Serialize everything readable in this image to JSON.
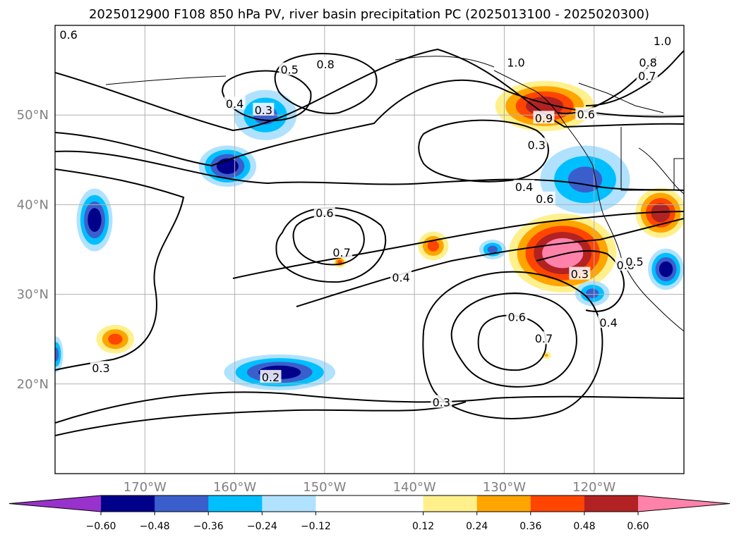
{
  "chart_data": {
    "type": "contour",
    "title": "2025012900 F108 850 hPa PV, river basin precipitation PC (2025013100 - 2025020300)",
    "map": {
      "lon_range": [
        -180,
        -110
      ],
      "lat_range": [
        10,
        60
      ],
      "lon_ticks": [
        -170,
        -160,
        -150,
        -140,
        -130,
        -120
      ],
      "lon_tick_labels": [
        "170°W",
        "160°W",
        "150°W",
        "140°W",
        "130°W",
        "120°W"
      ],
      "lat_ticks": [
        20,
        30,
        40,
        50
      ],
      "lat_tick_labels": [
        "20°N",
        "30°N",
        "40°N",
        "50°N"
      ],
      "grid": true,
      "tick_label_color": "#808080"
    },
    "colorbar": {
      "orientation": "horizontal",
      "extend": "both",
      "boundaries": [
        -0.72,
        -0.6,
        -0.48,
        -0.36,
        -0.24,
        -0.12,
        0.12,
        0.24,
        0.36,
        0.48,
        0.6,
        0.72
      ],
      "colors": [
        "#9932cc",
        "#00008b",
        "#3a5fcd",
        "#00bfff",
        "#b0e2ff",
        "#ffffff",
        "#fff08c",
        "#ffa500",
        "#ff4500",
        "#b22222",
        "#ff82ab"
      ],
      "tick_values": [
        -0.6,
        -0.48,
        -0.36,
        -0.24,
        -0.12,
        0.12,
        0.24,
        0.36,
        0.48,
        0.6
      ],
      "tick_labels": [
        "−0.60",
        "−0.48",
        "−0.36",
        "−0.24",
        "−0.12",
        "0.12",
        "0.24",
        "0.36",
        "0.48",
        "0.60"
      ]
    },
    "shaded_regions": [
      {
        "lon": -156.6,
        "lat": 50.0,
        "rx": 3.5,
        "ry": 2.8,
        "value": -0.36
      },
      {
        "lon": -160.8,
        "lat": 44.3,
        "rx": 3.2,
        "ry": 2.3,
        "value": -0.48
      },
      {
        "lon": -175.6,
        "lat": 38.3,
        "rx": 2.0,
        "ry": 3.5,
        "value": -0.48
      },
      {
        "lon": -173.3,
        "lat": 25.0,
        "rx": 2.1,
        "ry": 1.6,
        "value": 0.36
      },
      {
        "lon": -179.9,
        "lat": 23.3,
        "rx": 0.8,
        "ry": 2.0,
        "value": -0.36
      },
      {
        "lon": -155.0,
        "lat": 21.3,
        "rx": 6.2,
        "ry": 2.0,
        "value": -0.48
      },
      {
        "lon": -148.3,
        "lat": 33.6,
        "rx": 0.7,
        "ry": 0.6,
        "value": 0.36
      },
      {
        "lon": -137.9,
        "lat": 35.4,
        "rx": 1.7,
        "ry": 1.6,
        "value": 0.36
      },
      {
        "lon": -131.3,
        "lat": 35.0,
        "rx": 1.5,
        "ry": 1.1,
        "value": -0.36
      },
      {
        "lon": -125.5,
        "lat": 51.0,
        "rx": 5.5,
        "ry": 2.8,
        "value": 0.48
      },
      {
        "lon": -121.0,
        "lat": 42.8,
        "rx": 5.0,
        "ry": 3.8,
        "value": -0.36
      },
      {
        "lon": -123.5,
        "lat": 34.6,
        "rx": 6.0,
        "ry": 4.4,
        "value": 0.6
      },
      {
        "lon": -112.6,
        "lat": 39.1,
        "rx": 2.8,
        "ry": 2.8,
        "value": 0.48
      },
      {
        "lon": -112.0,
        "lat": 32.8,
        "rx": 2.0,
        "ry": 2.3,
        "value": -0.48
      },
      {
        "lon": -120.2,
        "lat": 30.1,
        "rx": 1.9,
        "ry": 1.4,
        "value": -0.36
      },
      {
        "lon": -125.3,
        "lat": 23.2,
        "rx": 0.5,
        "ry": 0.4,
        "value": 0.24
      }
    ],
    "contour_labels": [
      {
        "text": "0.6",
        "lon": -178.5,
        "lat": 58.9
      },
      {
        "text": "0.5",
        "lon": -153.9,
        "lat": 55.0
      },
      {
        "text": "0.8",
        "lon": -149.9,
        "lat": 55.6
      },
      {
        "text": "0.4",
        "lon": -160.0,
        "lat": 51.2
      },
      {
        "text": "0.3",
        "lon": -156.8,
        "lat": 50.5
      },
      {
        "text": "1.0",
        "lon": -112.4,
        "lat": 58.2
      },
      {
        "text": "0.8",
        "lon": -114.0,
        "lat": 55.8
      },
      {
        "text": "0.7",
        "lon": -114.1,
        "lat": 54.3
      },
      {
        "text": "1.0",
        "lon": -128.7,
        "lat": 55.8
      },
      {
        "text": "0.9",
        "lon": -125.6,
        "lat": 49.6
      },
      {
        "text": "0.6",
        "lon": -120.9,
        "lat": 50.0
      },
      {
        "text": "0.3",
        "lon": -126.4,
        "lat": 46.6
      },
      {
        "text": "0.4",
        "lon": -127.8,
        "lat": 41.9
      },
      {
        "text": "0.6",
        "lon": -125.5,
        "lat": 40.6
      },
      {
        "text": "0.6",
        "lon": -150.0,
        "lat": 39.0
      },
      {
        "text": "0.7",
        "lon": -148.1,
        "lat": 34.6
      },
      {
        "text": "0.4",
        "lon": -141.5,
        "lat": 31.8
      },
      {
        "text": "0.3",
        "lon": -121.6,
        "lat": 32.2
      },
      {
        "text": "0.8",
        "lon": -116.5,
        "lat": 33.2
      },
      {
        "text": "0.5",
        "lon": -115.5,
        "lat": 33.6
      },
      {
        "text": "0.4",
        "lon": -118.4,
        "lat": 26.8
      },
      {
        "text": "0.6",
        "lon": -128.6,
        "lat": 27.4
      },
      {
        "text": "0.7",
        "lon": -125.6,
        "lat": 25.0
      },
      {
        "text": "0.3",
        "lon": -174.9,
        "lat": 21.7
      },
      {
        "text": "0.2",
        "lon": -156.0,
        "lat": 20.7
      },
      {
        "text": "0.3",
        "lon": -137.0,
        "lat": 17.9
      }
    ]
  }
}
